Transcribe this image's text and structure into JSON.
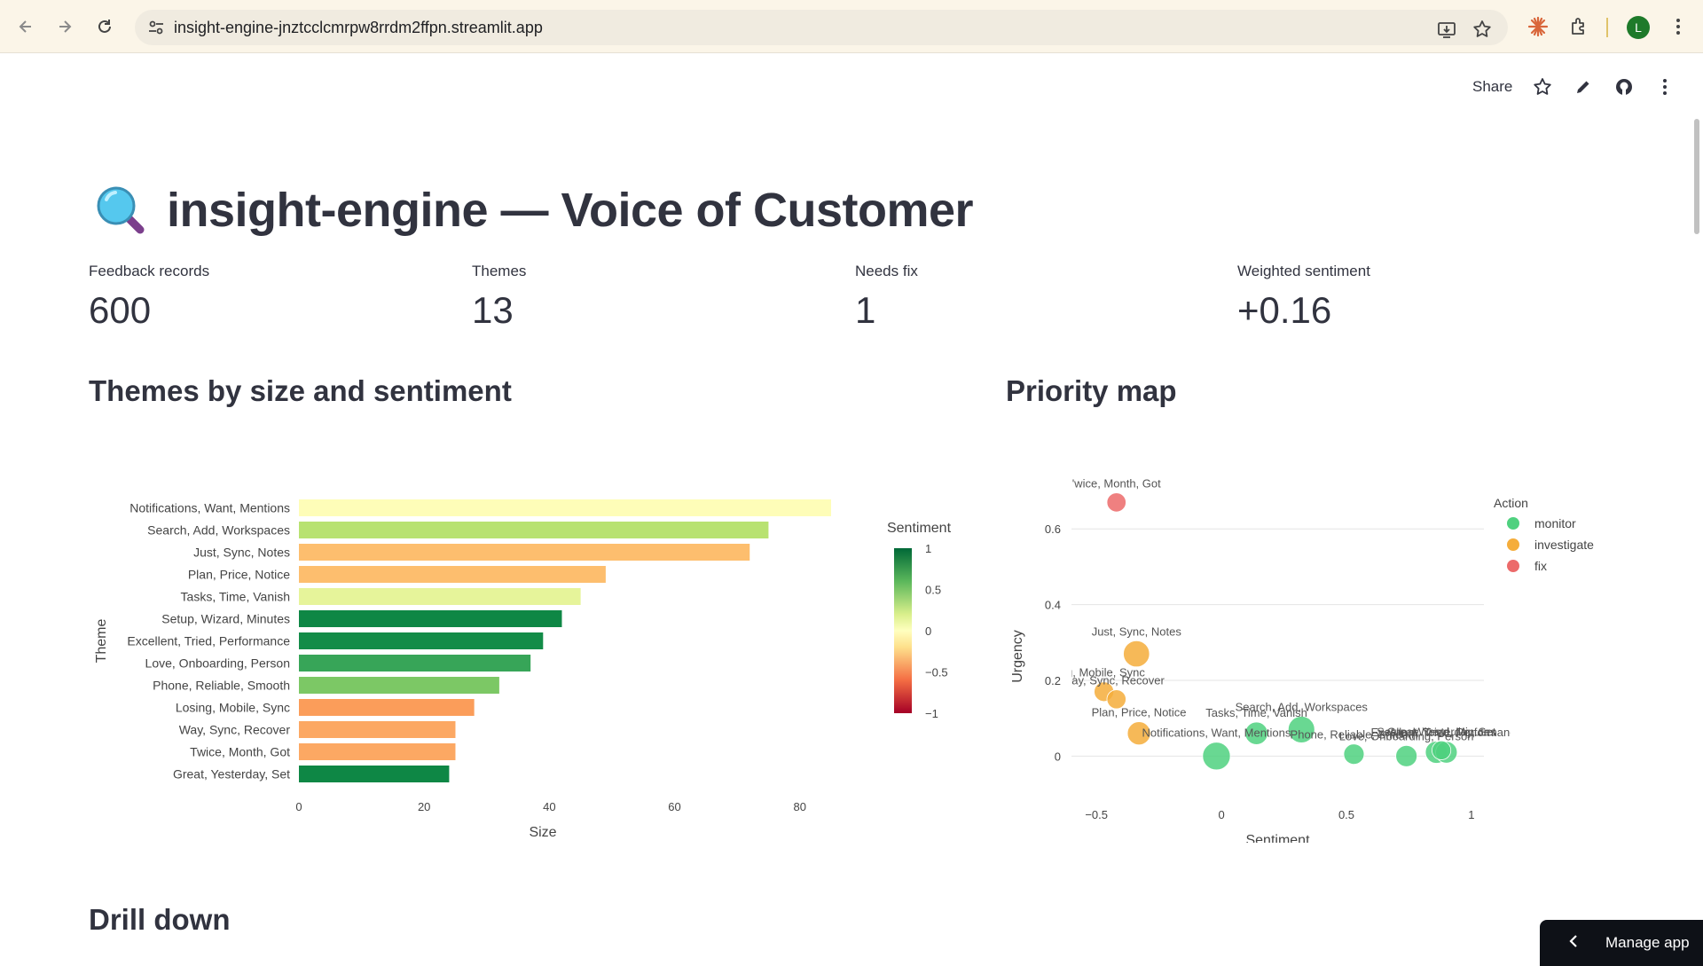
{
  "browser": {
    "url": "insight-engine-jnztcclcmrpw8rrdm2ffpn.streamlit.app",
    "profile_initial": "L",
    "icons": [
      "back-arrow-icon",
      "forward-arrow-icon",
      "reload-icon",
      "site-settings-icon",
      "install-app-icon",
      "bookmark-star-icon",
      "claude-extension-icon",
      "extensions-puzzle-icon",
      "chrome-menu-icon"
    ]
  },
  "toolbar": {
    "share_label": "Share",
    "icons": [
      "star-icon",
      "edit-pencil-icon",
      "github-icon",
      "more-vertical-icon"
    ]
  },
  "page": {
    "title": "insight-engine — Voice of Customer",
    "title_icon": "magnifying-glass-icon"
  },
  "metrics": [
    {
      "label": "Feedback records",
      "value": "600"
    },
    {
      "label": "Themes",
      "value": "13"
    },
    {
      "label": "Needs fix",
      "value": "1"
    },
    {
      "label": "Weighted sentiment",
      "value": "+0.16"
    }
  ],
  "sections": {
    "themes_title": "Themes by size and sentiment",
    "priority_title": "Priority map",
    "drilldown_title": "Drill down"
  },
  "manage_app": {
    "label": "Manage app"
  },
  "chart_data": [
    {
      "type": "bar",
      "orientation": "horizontal",
      "xlabel": "Size",
      "ylabel": "Theme",
      "xlim": [
        0,
        85
      ],
      "xticks": [
        0,
        20,
        40,
        60,
        80
      ],
      "colorbar": {
        "title": "Sentiment",
        "ticks": [
          1,
          0.5,
          0,
          -0.5,
          -1
        ],
        "tick_labels": [
          "1",
          "0.5",
          "0",
          "−0.5",
          "−1"
        ],
        "range": [
          -1,
          1
        ]
      },
      "categories": [
        "Notifications, Want, Mentions",
        "Search, Add, Workspaces",
        "Just, Sync, Notes",
        "Plan, Price, Notice",
        "Tasks, Time, Vanish",
        "Setup, Wizard, Minutes",
        "Excellent, Tried, Performance",
        "Love, Onboarding, Person",
        "Phone, Reliable, Smooth",
        "Losing, Mobile, Sync",
        "Way, Sync, Recover",
        "Twice, Month, Got",
        "Great, Yesterday, Set"
      ],
      "values": [
        85,
        75,
        72,
        49,
        45,
        42,
        39,
        37,
        32,
        28,
        25,
        25,
        24
      ],
      "colors": [
        "#fefdb8",
        "#b8e271",
        "#fdbe6e",
        "#fdbe6e",
        "#e6f49a",
        "#0e8745",
        "#138c48",
        "#37a558",
        "#7cc865",
        "#fb9d5a",
        "#fca863",
        "#fca863",
        "#0e8745"
      ]
    },
    {
      "type": "scatter",
      "xlabel": "Sentiment",
      "ylabel": "Urgency",
      "xlim": [
        -0.6,
        1.05
      ],
      "ylim": [
        -0.1,
        0.72
      ],
      "xticks": [
        -0.5,
        0,
        0.5,
        1
      ],
      "xtick_labels": [
        "−0.5",
        "0",
        "0.5",
        "1"
      ],
      "yticks": [
        0,
        0.2,
        0.4,
        0.6
      ],
      "yticks_labels": [
        "0",
        "0.2",
        "0.4",
        "0.6"
      ],
      "legend": {
        "title": "Action",
        "position": "right",
        "entries": [
          {
            "name": "monitor",
            "color": "#4fd17f"
          },
          {
            "name": "investigate",
            "color": "#f5ad3b"
          },
          {
            "name": "fix",
            "color": "#ec6a6a"
          }
        ]
      },
      "points": [
        {
          "label": "Twice, Month, Got",
          "label_shown": "'wice, Month, Got",
          "x": -0.42,
          "y": 0.67,
          "size": 25,
          "action": "fix"
        },
        {
          "label": "Just, Sync, Notes",
          "x": -0.34,
          "y": 0.27,
          "size": 72,
          "action": "investigate"
        },
        {
          "label": "Losing, Mobile, Sync",
          "label_shown": "ıg, Mobile, Sync",
          "x": -0.47,
          "y": 0.17,
          "size": 28,
          "action": "investigate"
        },
        {
          "label": "Way, Sync, Recover",
          "label_shown": "/ay, Sync, Recover",
          "x": -0.42,
          "y": 0.15,
          "size": 25,
          "action": "investigate"
        },
        {
          "label": "Plan, Price, Notice",
          "x": -0.33,
          "y": 0.06,
          "size": 49,
          "action": "investigate"
        },
        {
          "label": "Notifications, Want, Mentions",
          "x": -0.02,
          "y": 0.0,
          "size": 85,
          "action": "monitor"
        },
        {
          "label": "Tasks, Time, Vanish",
          "x": 0.14,
          "y": 0.06,
          "size": 45,
          "action": "monitor"
        },
        {
          "label": "Search, Add, Workspaces",
          "x": 0.32,
          "y": 0.07,
          "size": 75,
          "action": "monitor"
        },
        {
          "label": "Phone, Reliable, Smooth",
          "x": 0.53,
          "y": 0.005,
          "size": 32,
          "action": "monitor"
        },
        {
          "label": "Love, Onboarding, Person",
          "x": 0.74,
          "y": 0.0,
          "size": 37,
          "action": "monitor"
        },
        {
          "label": "Setup, Wizard, Minutes",
          "x": 0.86,
          "y": 0.01,
          "size": 42,
          "action": "monitor"
        },
        {
          "label": "Excellent, Tried, Performance",
          "x": 0.9,
          "y": 0.01,
          "size": 39,
          "action": "monitor"
        },
        {
          "label": "Great, Yesterday, Set",
          "x": 0.88,
          "y": 0.015,
          "size": 24,
          "action": "monitor"
        }
      ]
    }
  ]
}
